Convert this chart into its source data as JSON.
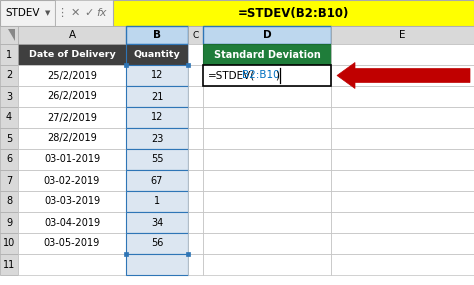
{
  "formula_bar": {
    "name_box": "STDEV",
    "formula": "=STDEV(B2:B10)"
  },
  "col_A_header": "Date of Delivery",
  "col_B_header": "Quantity",
  "col_D_header": "Standard Deviation",
  "dates": [
    "25/2/2019",
    "26/2/2019",
    "27/2/2019",
    "28/2/2019",
    "03-01-2019",
    "03-02-2019",
    "03-03-2019",
    "03-04-2019",
    "03-05-2019"
  ],
  "quantities": [
    "12",
    "21",
    "12",
    "23",
    "55",
    "67",
    "1",
    "34",
    "56"
  ],
  "header_bg": "#3F3F3F",
  "header_fg": "#FFFFFF",
  "std_dev_header_bg": "#1F7D3A",
  "std_dev_header_fg": "#FFFFFF",
  "selected_col_bg": "#DCE6F1",
  "col_header_bg": "#D9D9D9",
  "row_header_bg": "#D9D9D9",
  "col_header_selected_bg": "#BDD7EE",
  "grid_color": "#BFBFBF",
  "formula_bar_bg": "#FFFF00",
  "formula_bar_icons_bg": "#F2F2F2",
  "arrow_color": "#C00000",
  "formula_blue": "#0070C0",
  "formula_black": "#000000",
  "white": "#FFFFFF",
  "border_selected": "#2E75B6"
}
